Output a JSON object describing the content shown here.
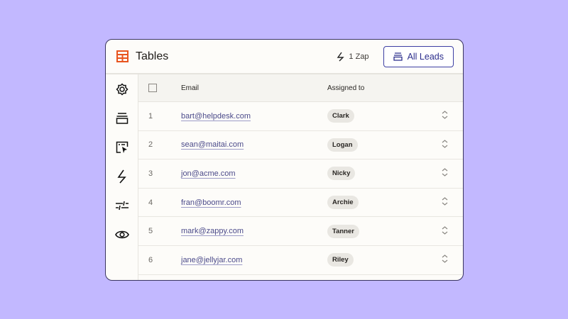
{
  "header": {
    "title": "Tables",
    "zap_label": "1 Zap",
    "view_button": "All Leads",
    "accent": "#e8541e"
  },
  "sidebar": {
    "icons": [
      "gear-icon",
      "layers-icon",
      "interface-icon",
      "zap-icon",
      "sliders-icon",
      "eye-icon"
    ]
  },
  "table": {
    "columns": [
      "Email",
      "Assigned to"
    ],
    "rows": [
      {
        "num": "1",
        "email": "bart@helpdesk.com",
        "assigned": "Clark"
      },
      {
        "num": "2",
        "email": "sean@maitai.com",
        "assigned": "Logan"
      },
      {
        "num": "3",
        "email": "jon@acme.com",
        "assigned": "Nicky"
      },
      {
        "num": "4",
        "email": "fran@boomr.com",
        "assigned": "Archie"
      },
      {
        "num": "5",
        "email": "mark@zappy.com",
        "assigned": "Tanner"
      },
      {
        "num": "6",
        "email": "jane@jellyjar.com",
        "assigned": "Riley"
      }
    ]
  }
}
